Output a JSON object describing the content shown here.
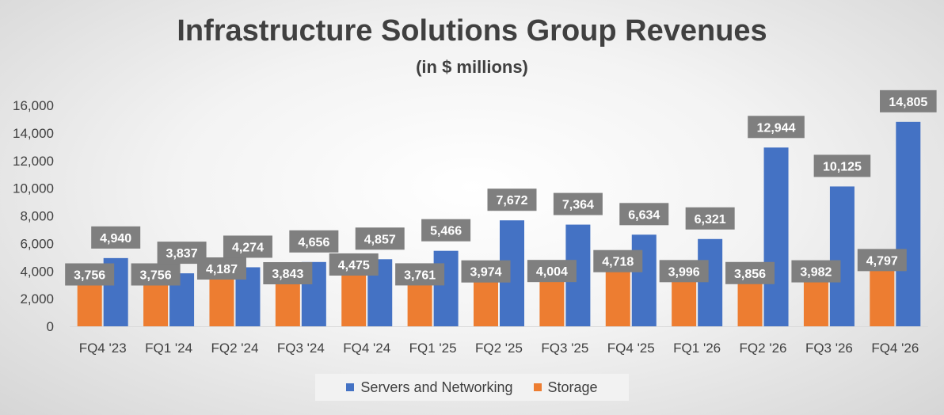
{
  "chart_data": {
    "type": "bar",
    "title": "Infrastructure Solutions Group Revenues",
    "subtitle": "(in $ millions)",
    "categories": [
      "FQ4 '23",
      "FQ1 '24",
      "FQ2 '24",
      "FQ3 '24",
      "FQ4 '24",
      "FQ1 '25",
      "FQ2 '25",
      "FQ3 '25",
      "FQ4 '25",
      "FQ1 '26",
      "FQ2 '26",
      "FQ3 '26",
      "FQ4 '26"
    ],
    "series": [
      {
        "name": "Storage",
        "color": "#ed7d31",
        "values": [
          3756,
          3756,
          4187,
          3843,
          4475,
          3761,
          3974,
          4004,
          4718,
          3996,
          3856,
          3982,
          4797
        ],
        "labels": [
          "3,756",
          "3,756",
          "4,187",
          "3,843",
          "4,475",
          "3,761",
          "3,974",
          "4,004",
          "4,718",
          "3,996",
          "3,856",
          "3,982",
          "4,797"
        ]
      },
      {
        "name": "Servers and Networking",
        "color": "#4472c4",
        "values": [
          4940,
          3837,
          4274,
          4656,
          4857,
          5466,
          7672,
          7364,
          6634,
          6321,
          12944,
          10125,
          14805
        ],
        "labels": [
          "4,940",
          "3,837",
          "4,274",
          "4,656",
          "4,857",
          "5,466",
          "7,672",
          "7,364",
          "6,634",
          "6,321",
          "12,944",
          "10,125",
          "14,805"
        ]
      }
    ],
    "ylim": [
      0,
      16000
    ],
    "yticks": [
      0,
      2000,
      4000,
      6000,
      8000,
      10000,
      12000,
      14000,
      16000
    ],
    "ytick_labels": [
      "0",
      "2,000",
      "4,000",
      "6,000",
      "8,000",
      "10,000",
      "12,000",
      "14,000",
      "16,000"
    ],
    "grid": false,
    "legend": {
      "position": "bottom",
      "order": [
        "Servers and Networking",
        "Storage"
      ]
    },
    "data_label_box_color": "#7f7f7f"
  }
}
